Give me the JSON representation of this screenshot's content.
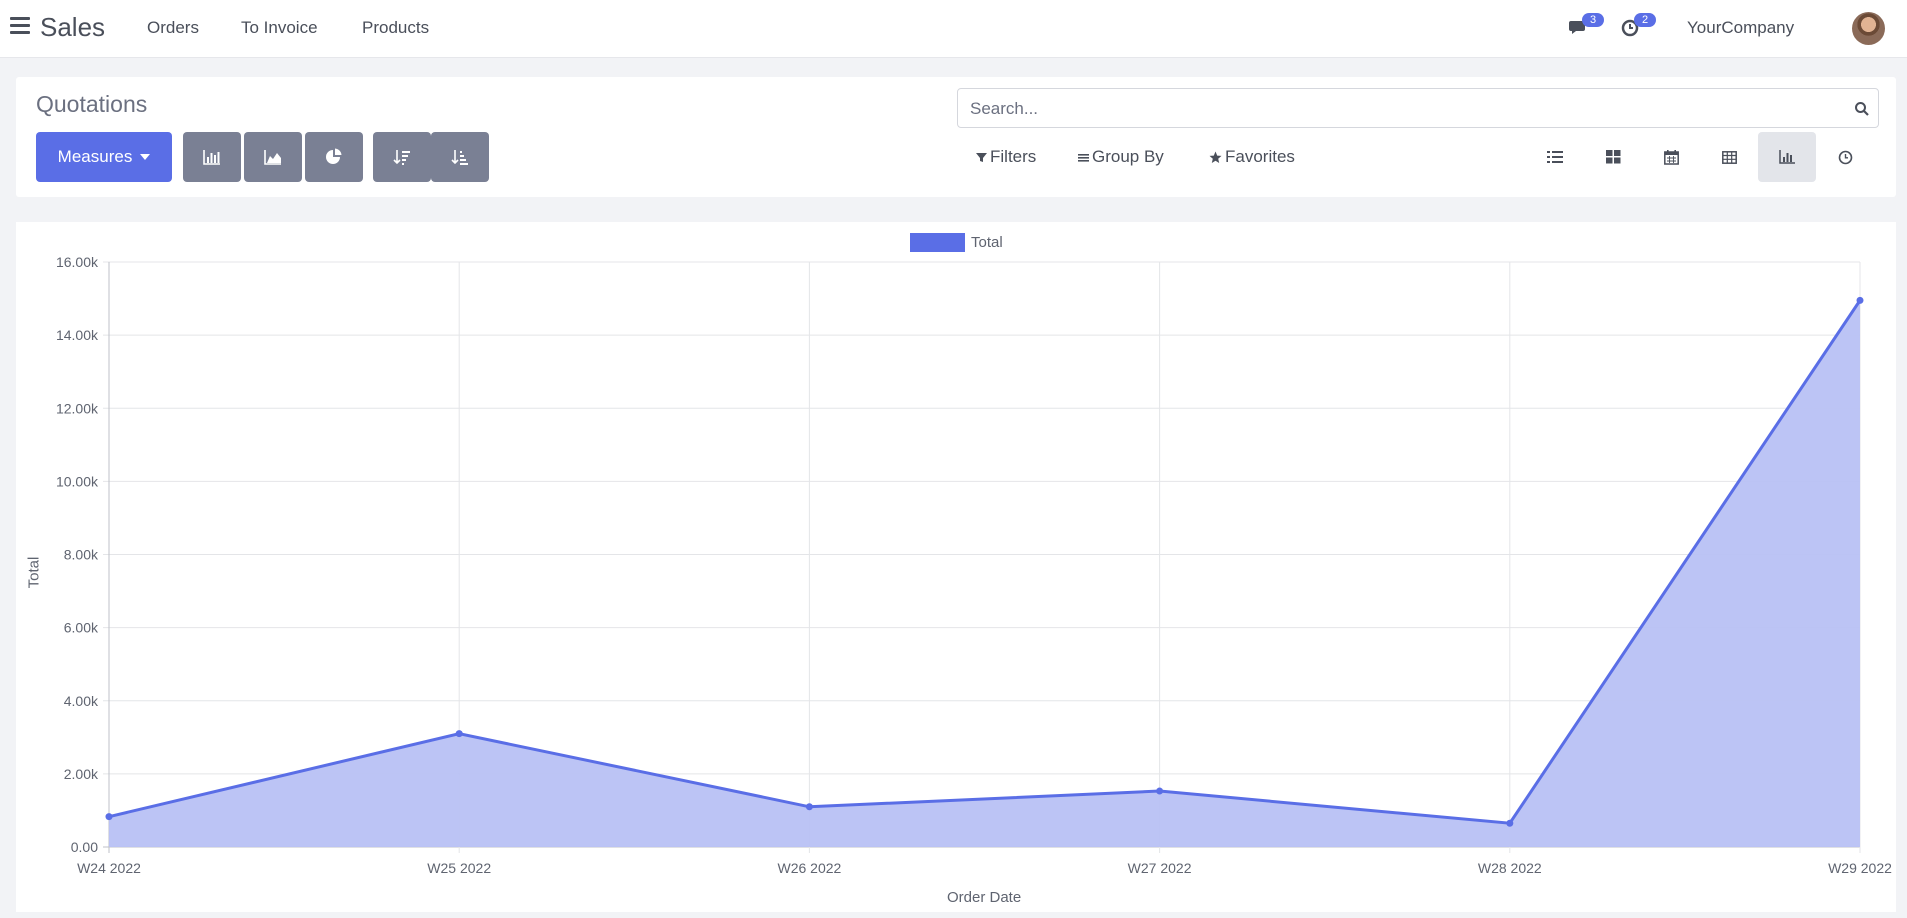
{
  "navbar": {
    "app_title": "Sales",
    "links": [
      "Orders",
      "To Invoice",
      "Products"
    ],
    "messages_count": "3",
    "activities_count": "2",
    "company": "YourCompany"
  },
  "control_panel": {
    "breadcrumb": "Quotations",
    "measures_label": "Measures",
    "search_placeholder": "Search...",
    "filters_label": "Filters",
    "groupby_label": "Group By",
    "favorites_label": "Favorites"
  },
  "colors": {
    "accent": "#5a6ee6",
    "area_fill": "#b8c1f4"
  },
  "chart_data": {
    "type": "area",
    "categories": [
      "W24 2022",
      "W25 2022",
      "W26 2022",
      "W27 2022",
      "W28 2022",
      "W29 2022"
    ],
    "series": [
      {
        "name": "Total",
        "values": [
          830,
          3100,
          1100,
          1530,
          650,
          14950
        ]
      }
    ],
    "yticks": [
      "0.00",
      "2.00k",
      "4.00k",
      "6.00k",
      "8.00k",
      "10.00k",
      "12.00k",
      "14.00k",
      "16.00k"
    ],
    "ylim": [
      0,
      16000
    ],
    "xlabel": "Order Date",
    "ylabel": "Total",
    "legend_position": "top-center",
    "grid": true
  }
}
